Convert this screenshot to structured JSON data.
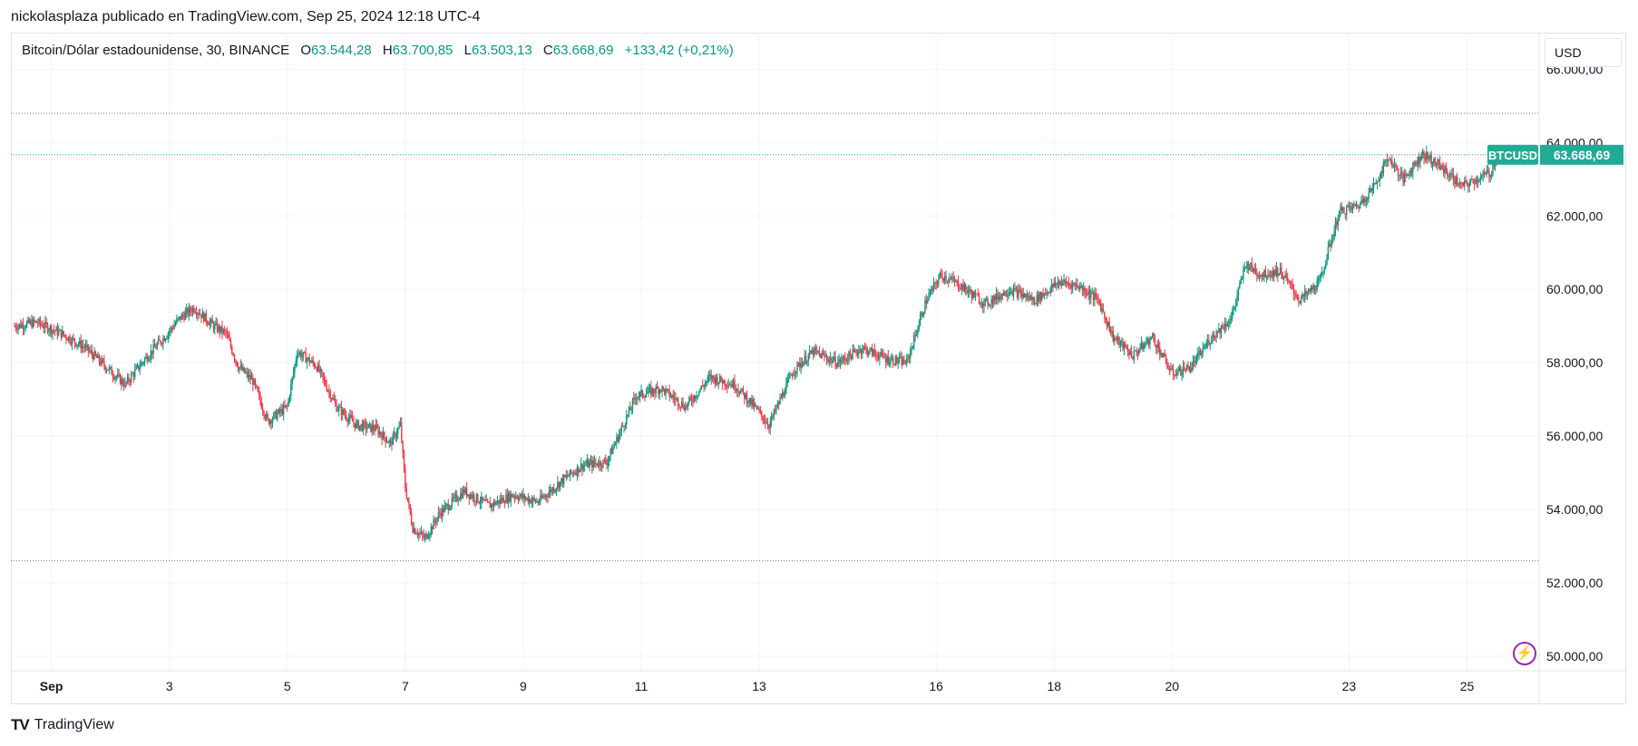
{
  "header": {
    "publisher_line": "nickolasplaza publicado en TradingView.com, Sep 25, 2024 12:18 UTC-4"
  },
  "legend": {
    "symbol": "Bitcoin/Dólar estadounidense, 30, BINANCE",
    "o_label": "O",
    "o_value": "63.544,28",
    "h_label": "H",
    "h_value": "63.700,85",
    "l_label": "L",
    "l_value": "63.503,13",
    "c_label": "C",
    "c_value": "63.668,69",
    "change": "+133,42 (+0,21%)"
  },
  "currency_button": "USD",
  "footer": {
    "logo_text": "TradingView"
  },
  "colors": {
    "up": "#089981",
    "down": "#f23645",
    "accent": "#22ab94",
    "alert": "#9c27b0"
  },
  "icons": {
    "alert": "lightning-icon",
    "logo": "tradingview-logo-icon"
  },
  "chart_data": {
    "type": "candlestick",
    "symbol": "BTCUSD",
    "interval": "30",
    "exchange": "BINANCE",
    "ylim": [
      49600,
      67000
    ],
    "y_ticks": [
      {
        "value": 50000,
        "label": "50.000,00"
      },
      {
        "value": 52000,
        "label": "52.000,00"
      },
      {
        "value": 54000,
        "label": "54.000,00"
      },
      {
        "value": 56000,
        "label": "56.000,00"
      },
      {
        "value": 58000,
        "label": "58.000,00"
      },
      {
        "value": 60000,
        "label": "60.000,00"
      },
      {
        "value": 62000,
        "label": "62.000,00"
      },
      {
        "value": 64000,
        "label": "64.000,00"
      },
      {
        "value": 66000,
        "label": "66.000,00"
      }
    ],
    "x_range": [
      "2024-08-31T09:00",
      "2024-09-25T12:00"
    ],
    "x_ticks": [
      {
        "date": "2024-09-01",
        "label": "Sep",
        "bold": true
      },
      {
        "date": "2024-09-03",
        "label": "3"
      },
      {
        "date": "2024-09-05",
        "label": "5"
      },
      {
        "date": "2024-09-07",
        "label": "7"
      },
      {
        "date": "2024-09-09",
        "label": "9"
      },
      {
        "date": "2024-09-11",
        "label": "11"
      },
      {
        "date": "2024-09-13",
        "label": "13"
      },
      {
        "date": "2024-09-16",
        "label": "16"
      },
      {
        "date": "2024-09-18",
        "label": "18"
      },
      {
        "date": "2024-09-20",
        "label": "20"
      },
      {
        "date": "2024-09-23",
        "label": "23"
      },
      {
        "date": "2024-09-25",
        "label": "25"
      }
    ],
    "price_path": [
      [
        "2024-08-31T09:00",
        59000
      ],
      [
        "2024-08-31T18:00",
        59100
      ],
      [
        "2024-09-01T04:00",
        58800
      ],
      [
        "2024-09-01T14:00",
        58400
      ],
      [
        "2024-09-01T22:00",
        57900
      ],
      [
        "2024-09-02T06:00",
        57400
      ],
      [
        "2024-09-02T14:00",
        58100
      ],
      [
        "2024-09-02T22:00",
        58700
      ],
      [
        "2024-09-03T04:00",
        59200
      ],
      [
        "2024-09-03T10:00",
        59500
      ],
      [
        "2024-09-03T18:00",
        59000
      ],
      [
        "2024-09-03T23:00",
        58800
      ],
      [
        "2024-09-04T04:00",
        57900
      ],
      [
        "2024-09-04T10:00",
        57500
      ],
      [
        "2024-09-04T16:00",
        56400
      ],
      [
        "2024-09-05T00:00",
        56800
      ],
      [
        "2024-09-05T04:00",
        58300
      ],
      [
        "2024-09-05T12:00",
        57900
      ],
      [
        "2024-09-05T20:00",
        56800
      ],
      [
        "2024-09-06T04:00",
        56300
      ],
      [
        "2024-09-06T12:00",
        56200
      ],
      [
        "2024-09-06T18:00",
        55800
      ],
      [
        "2024-09-06T22:00",
        56300
      ],
      [
        "2024-09-07T00:00",
        54600
      ],
      [
        "2024-09-07T03:00",
        53500
      ],
      [
        "2024-09-07T08:00",
        53200
      ],
      [
        "2024-09-07T14:00",
        53900
      ],
      [
        "2024-09-08T00:00",
        54500
      ],
      [
        "2024-09-08T10:00",
        54100
      ],
      [
        "2024-09-08T20:00",
        54400
      ],
      [
        "2024-09-09T06:00",
        54200
      ],
      [
        "2024-09-09T16:00",
        54800
      ],
      [
        "2024-09-10T00:00",
        55200
      ],
      [
        "2024-09-10T10:00",
        55300
      ],
      [
        "2024-09-10T22:00",
        57100
      ],
      [
        "2024-09-11T08:00",
        57300
      ],
      [
        "2024-09-11T18:00",
        56800
      ],
      [
        "2024-09-12T04:00",
        57600
      ],
      [
        "2024-09-12T14:00",
        57400
      ],
      [
        "2024-09-12T22:00",
        56800
      ],
      [
        "2024-09-13T04:00",
        56300
      ],
      [
        "2024-09-13T14:00",
        57800
      ],
      [
        "2024-09-13T22:00",
        58300
      ],
      [
        "2024-09-14T08:00",
        58000
      ],
      [
        "2024-09-14T18:00",
        58400
      ],
      [
        "2024-09-15T04:00",
        58100
      ],
      [
        "2024-09-15T12:00",
        58000
      ],
      [
        "2024-09-15T20:00",
        59700
      ],
      [
        "2024-09-16T02:00",
        60400
      ],
      [
        "2024-09-16T10:00",
        60100
      ],
      [
        "2024-09-16T20:00",
        59600
      ],
      [
        "2024-09-17T06:00",
        60000
      ],
      [
        "2024-09-17T16:00",
        59700
      ],
      [
        "2024-09-18T02:00",
        60200
      ],
      [
        "2024-09-18T10:00",
        60100
      ],
      [
        "2024-09-18T18:00",
        59700
      ],
      [
        "2024-09-19T00:00",
        58700
      ],
      [
        "2024-09-19T08:00",
        58200
      ],
      [
        "2024-09-19T16:00",
        58700
      ],
      [
        "2024-09-20T00:00",
        57700
      ],
      [
        "2024-09-20T08:00",
        57900
      ],
      [
        "2024-09-20T16:00",
        58700
      ],
      [
        "2024-09-21T00:00",
        59200
      ],
      [
        "2024-09-21T06:00",
        60700
      ],
      [
        "2024-09-21T12:00",
        60400
      ],
      [
        "2024-09-21T20:00",
        60500
      ],
      [
        "2024-09-22T04:00",
        59700
      ],
      [
        "2024-09-22T12:00",
        60200
      ],
      [
        "2024-09-22T20:00",
        62100
      ],
      [
        "2024-09-23T04:00",
        62300
      ],
      [
        "2024-09-23T10:00",
        62800
      ],
      [
        "2024-09-23T16:00",
        63600
      ],
      [
        "2024-09-23T22:00",
        63000
      ],
      [
        "2024-09-24T06:00",
        63700
      ],
      [
        "2024-09-24T14:00",
        63300
      ],
      [
        "2024-09-24T22:00",
        62800
      ],
      [
        "2024-09-25T04:00",
        63000
      ],
      [
        "2024-09-25T10:00",
        63200
      ],
      [
        "2024-09-25T12:00",
        63668.69
      ]
    ],
    "price_label_symbol": "BTCUSD",
    "last_price": 63668.69,
    "last_price_label": "63.668,69",
    "horizontal_levels": [
      64800,
      63668.69,
      52600
    ]
  }
}
